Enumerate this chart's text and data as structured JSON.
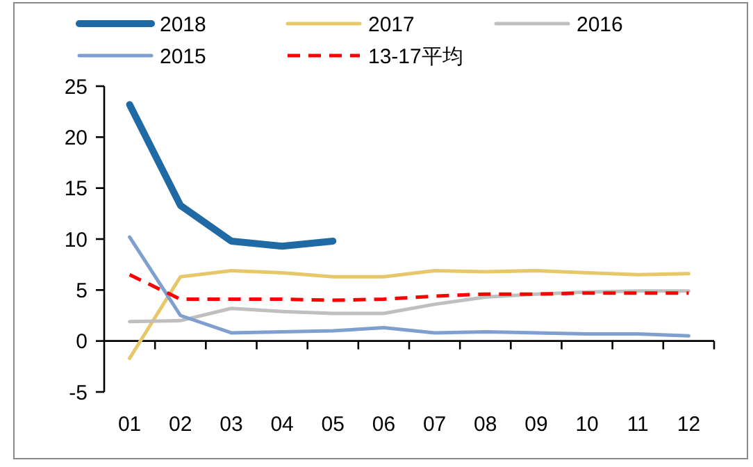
{
  "chart_data": {
    "type": "line",
    "categories": [
      "01",
      "02",
      "03",
      "04",
      "05",
      "06",
      "07",
      "08",
      "09",
      "10",
      "11",
      "12"
    ],
    "series": [
      {
        "name": "2018",
        "color": "#1f6aa5",
        "values": [
          23.2,
          13.3,
          9.8,
          9.3,
          9.8,
          null,
          null,
          null,
          null,
          null,
          null,
          null
        ]
      },
      {
        "name": "2017",
        "color": "#e6c76a",
        "values": [
          -1.7,
          6.3,
          6.9,
          6.7,
          6.3,
          6.3,
          6.9,
          6.8,
          6.9,
          6.7,
          6.5,
          6.6
        ]
      },
      {
        "name": "2016",
        "color": "#bfbfbf",
        "values": [
          1.9,
          2.0,
          3.2,
          2.9,
          2.7,
          2.7,
          3.6,
          4.3,
          4.6,
          4.8,
          4.9,
          4.9
        ]
      },
      {
        "name": "2015",
        "color": "#7f9fcf",
        "values": [
          10.2,
          2.5,
          0.8,
          0.9,
          1.0,
          1.3,
          0.8,
          0.9,
          0.8,
          0.7,
          0.7,
          0.5
        ]
      },
      {
        "name": "13-17平均",
        "color": "#ff0000",
        "line_style": "dashed",
        "values": [
          6.5,
          4.1,
          4.1,
          4.1,
          4.0,
          4.1,
          4.4,
          4.6,
          4.6,
          4.7,
          4.7,
          4.7
        ]
      }
    ],
    "ylim": [
      -5,
      25
    ],
    "yticks": [
      -5,
      0,
      5,
      10,
      15,
      20,
      25
    ],
    "legend": "top",
    "line_style": "solid"
  }
}
